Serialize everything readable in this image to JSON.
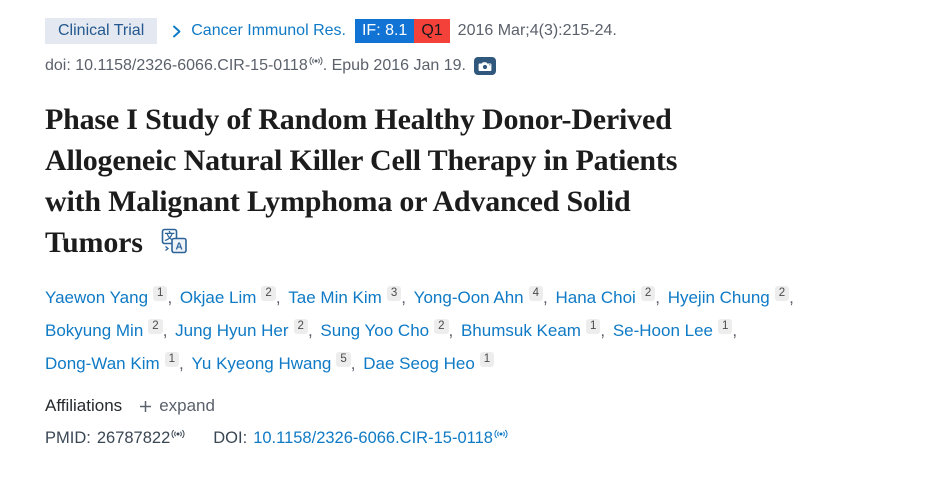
{
  "header": {
    "publication_type": "Clinical Trial",
    "journal": "Cancer Immunol Res.",
    "impact_factor": "IF: 8.1",
    "quartile": "Q1",
    "citation": "2016 Mar;4(3):215-24.",
    "doi_text": "doi: 10.1158/2326-6066.CIR-15-0118",
    "epub_text": ". Epub 2016 Jan 19."
  },
  "title": "Phase I Study of Random Healthy Donor-Derived Allogeneic Natural Killer Cell Therapy in Patients with Malignant Lymphoma or Advanced Solid Tumors",
  "title_lines": [
    "Phase I Study of Random Healthy Donor-Derived",
    "Allogeneic Natural Killer Cell Therapy in Patients",
    "with Malignant Lymphoma or Advanced Solid",
    "Tumors"
  ],
  "authors": [
    {
      "name": "Yaewon Yang",
      "sup": "1"
    },
    {
      "name": "Okjae Lim",
      "sup": "2"
    },
    {
      "name": "Tae Min Kim",
      "sup": "3"
    },
    {
      "name": "Yong-Oon Ahn",
      "sup": "4"
    },
    {
      "name": "Hana Choi",
      "sup": "2"
    },
    {
      "name": "Hyejin Chung",
      "sup": "2"
    },
    {
      "name": "Bokyung Min",
      "sup": "2"
    },
    {
      "name": "Jung Hyun Her",
      "sup": "2"
    },
    {
      "name": "Sung Yoo Cho",
      "sup": "2"
    },
    {
      "name": "Bhumsuk Keam",
      "sup": "1"
    },
    {
      "name": "Se-Hoon Lee",
      "sup": "1"
    },
    {
      "name": "Dong-Wan Kim",
      "sup": "1"
    },
    {
      "name": "Yu Kyeong Hwang",
      "sup": "5"
    },
    {
      "name": "Dae Seog Heo",
      "sup": "1"
    }
  ],
  "affiliations": {
    "label": "Affiliations",
    "expand": "expand"
  },
  "identifiers": {
    "pmid_label": "PMID:",
    "pmid": "26787822",
    "doi_label": "DOI:",
    "doi": "10.1158/2326-6066.CIR-15-0118"
  },
  "icons": {
    "chevron-right-icon": "›",
    "broadcast-icon": "((•))",
    "camera-icon": "camera",
    "translate-icon": "文/A",
    "plus-icon": "+"
  },
  "colors": {
    "link_blue": "#0f7ac5",
    "impact_factor_bg": "#1173d4",
    "quartile_bg": "#f4423b",
    "pub_type_badge_bg": "#e3e8f1",
    "pub_type_badge_text": "#24588e",
    "muted_text": "#5b616b",
    "title_text": "#1c1c1c",
    "camera_btn_bg": "#30587c"
  }
}
